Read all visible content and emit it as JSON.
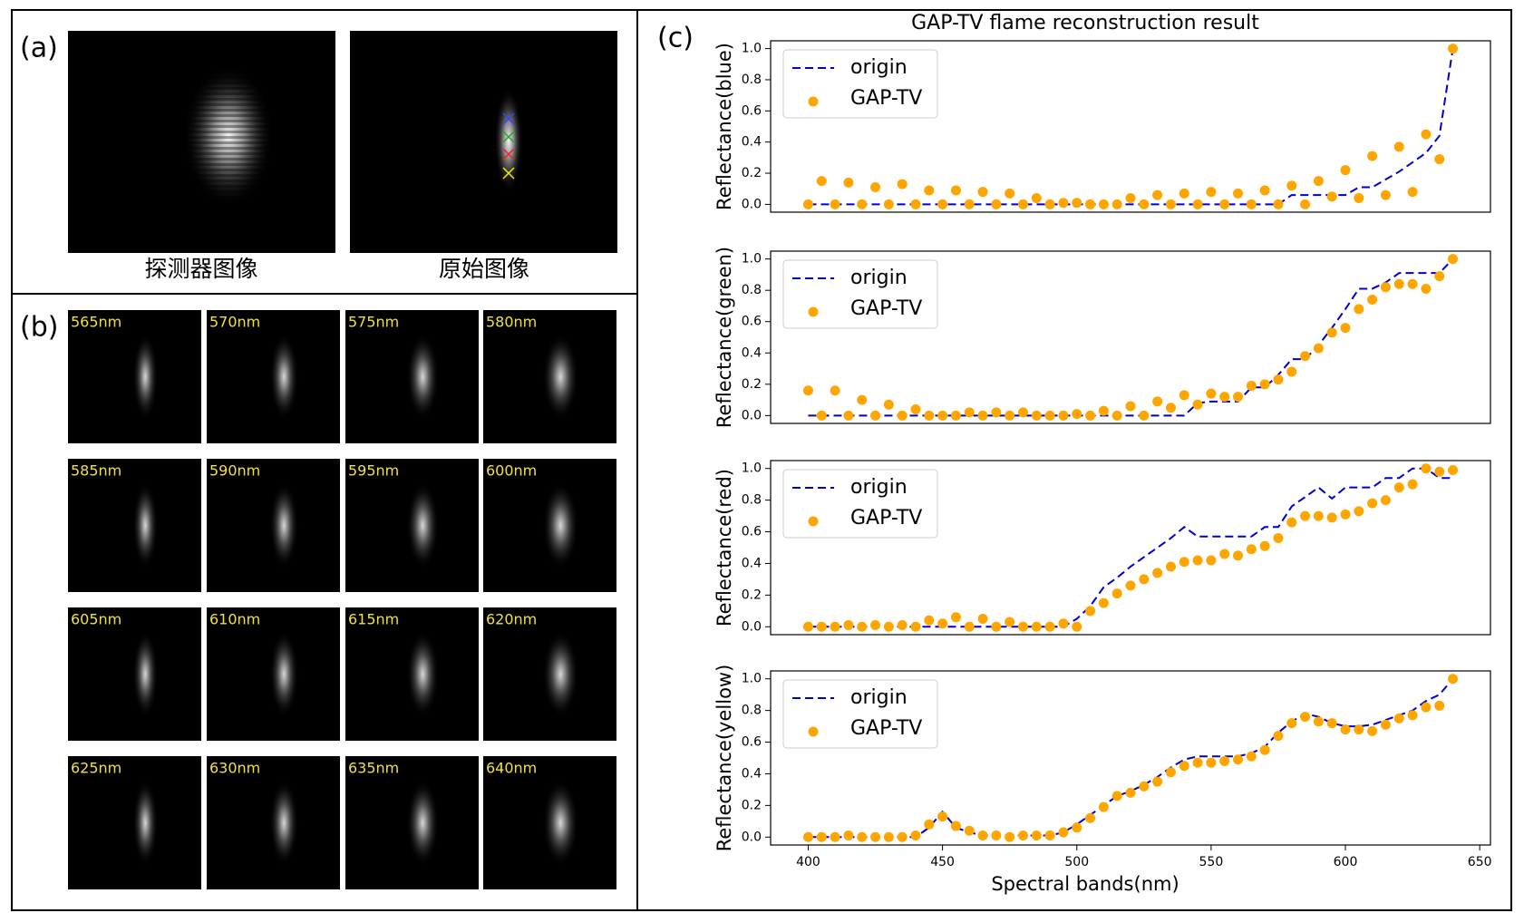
{
  "panel_labels": {
    "a": "(a)",
    "b": "(b)",
    "c": "(c)"
  },
  "image_captions": [
    "探测器图像",
    "原始图像"
  ],
  "wavelengths": [
    "565nm",
    "570nm",
    "575nm",
    "580nm",
    "585nm",
    "590nm",
    "595nm",
    "600nm",
    "605nm",
    "610nm",
    "615nm",
    "620nm",
    "625nm",
    "630nm",
    "635nm",
    "640nm"
  ],
  "chart_data": [
    {
      "type": "line",
      "title": "GAP-TV flame reconstruction result",
      "ylabel": "Reflectance(blue)",
      "x": [
        400,
        405,
        410,
        415,
        420,
        425,
        430,
        435,
        440,
        445,
        450,
        455,
        460,
        465,
        470,
        475,
        480,
        485,
        490,
        495,
        500,
        505,
        510,
        515,
        520,
        525,
        530,
        535,
        540,
        545,
        550,
        555,
        560,
        565,
        570,
        575,
        580,
        585,
        590,
        595,
        600,
        605,
        610,
        615,
        620,
        625,
        630,
        635,
        640
      ],
      "xlim": [
        386,
        654
      ],
      "ylim": [
        -0.05,
        1.05
      ],
      "yticks": [
        {
          "value": 0,
          "label": "0.0"
        },
        0.2,
        0.4,
        0.6,
        0.8,
        {
          "value": 1,
          "label": "1.0"
        }
      ],
      "legend": "upper left",
      "series": [
        {
          "name": "origin",
          "color": "#0000cc",
          "linestyle": "dashed",
          "values": [
            0,
            0,
            0,
            0,
            0,
            0,
            0,
            0,
            0,
            0,
            0,
            0,
            0,
            0,
            0,
            0,
            0,
            0,
            0,
            0,
            0,
            0,
            0,
            0,
            0,
            0,
            0,
            0,
            0,
            0,
            0,
            0,
            0,
            0,
            0,
            0,
            0.06,
            0.06,
            0.06,
            0.06,
            0.06,
            0.11,
            0.11,
            0.16,
            0.21,
            0.27,
            0.33,
            0.44,
            1.0
          ]
        },
        {
          "name": "GAP-TV",
          "color": "#ffa500",
          "marker": "o",
          "linestyle": "none",
          "values": [
            0,
            0.15,
            0,
            0.14,
            0,
            0.11,
            0,
            0.13,
            0,
            0.09,
            0,
            0.09,
            0,
            0.08,
            0,
            0.07,
            0,
            0.04,
            0,
            0.01,
            0.01,
            0,
            0,
            0,
            0.04,
            0,
            0.06,
            0,
            0.07,
            0,
            0.08,
            0,
            0.07,
            0,
            0.09,
            0,
            0.12,
            0,
            0.15,
            0.05,
            0.22,
            0.04,
            0.31,
            0.06,
            0.37,
            0.08,
            0.45,
            0.29,
            1.0
          ]
        }
      ]
    },
    {
      "type": "line",
      "ylabel": "Reflectance(green)",
      "x": [
        400,
        405,
        410,
        415,
        420,
        425,
        430,
        435,
        440,
        445,
        450,
        455,
        460,
        465,
        470,
        475,
        480,
        485,
        490,
        495,
        500,
        505,
        510,
        515,
        520,
        525,
        530,
        535,
        540,
        545,
        550,
        555,
        560,
        565,
        570,
        575,
        580,
        585,
        590,
        595,
        600,
        605,
        610,
        615,
        620,
        625,
        630,
        635,
        640
      ],
      "xlim": [
        386,
        654
      ],
      "ylim": [
        -0.05,
        1.05
      ],
      "yticks": [
        {
          "value": 0,
          "label": "0.0"
        },
        0.2,
        0.4,
        0.6,
        0.8,
        {
          "value": 1,
          "label": "1.0"
        }
      ],
      "legend": "upper left",
      "series": [
        {
          "name": "origin",
          "color": "#0000cc",
          "linestyle": "dashed",
          "values": [
            0,
            0,
            0,
            0,
            0,
            0,
            0,
            0,
            0,
            0,
            0,
            0,
            0,
            0,
            0,
            0,
            0,
            0,
            0,
            0,
            0,
            0,
            0,
            0,
            0,
            0,
            0,
            0,
            0,
            0.08,
            0.09,
            0.09,
            0.09,
            0.18,
            0.18,
            0.26,
            0.36,
            0.36,
            0.45,
            0.56,
            0.68,
            0.81,
            0.81,
            0.85,
            0.91,
            0.91,
            0.91,
            0.91,
            1.0
          ]
        },
        {
          "name": "GAP-TV",
          "color": "#ffa500",
          "marker": "o",
          "linestyle": "none",
          "values": [
            0.16,
            0,
            0.16,
            0,
            0.1,
            0,
            0.07,
            0,
            0.04,
            0,
            0,
            0,
            0.02,
            0,
            0.02,
            0,
            0.02,
            0,
            0,
            0,
            0.01,
            0,
            0.03,
            0,
            0.06,
            0,
            0.09,
            0.05,
            0.13,
            0.07,
            0.14,
            0.12,
            0.12,
            0.19,
            0.2,
            0.23,
            0.28,
            0.38,
            0.43,
            0.53,
            0.56,
            0.68,
            0.74,
            0.82,
            0.84,
            0.84,
            0.81,
            0.89,
            1.0
          ]
        }
      ]
    },
    {
      "type": "line",
      "ylabel": "Reflectance(red)",
      "x": [
        400,
        405,
        410,
        415,
        420,
        425,
        430,
        435,
        440,
        445,
        450,
        455,
        460,
        465,
        470,
        475,
        480,
        485,
        490,
        495,
        500,
        505,
        510,
        515,
        520,
        525,
        530,
        535,
        540,
        545,
        550,
        555,
        560,
        565,
        570,
        575,
        580,
        585,
        590,
        595,
        600,
        605,
        610,
        615,
        620,
        625,
        630,
        635,
        640
      ],
      "xlim": [
        386,
        654
      ],
      "ylim": [
        -0.05,
        1.05
      ],
      "yticks": [
        {
          "value": 0,
          "label": "0.0"
        },
        0.2,
        0.4,
        0.6,
        0.8,
        {
          "value": 1,
          "label": "1.0"
        }
      ],
      "legend": "upper left",
      "series": [
        {
          "name": "origin",
          "color": "#0000cc",
          "linestyle": "dashed",
          "values": [
            0,
            0,
            0,
            0,
            0,
            0,
            0,
            0,
            0,
            0,
            0,
            0,
            0,
            0,
            0,
            0,
            0,
            0,
            0,
            0,
            0.05,
            0.13,
            0.25,
            0.31,
            0.38,
            0.44,
            0.5,
            0.56,
            0.63,
            0.57,
            0.57,
            0.57,
            0.57,
            0.57,
            0.63,
            0.63,
            0.76,
            0.82,
            0.88,
            0.81,
            0.88,
            0.88,
            0.88,
            0.94,
            0.94,
            1.0,
            1.0,
            0.94,
            0.94
          ]
        },
        {
          "name": "GAP-TV",
          "color": "#ffa500",
          "marker": "o",
          "linestyle": "none",
          "values": [
            0,
            0,
            0,
            0.01,
            0,
            0.01,
            0,
            0.01,
            0,
            0.04,
            0.02,
            0.06,
            0,
            0.05,
            0,
            0.03,
            0,
            0,
            0,
            0.02,
            0,
            0.1,
            0.15,
            0.21,
            0.26,
            0.3,
            0.34,
            0.38,
            0.41,
            0.42,
            0.42,
            0.46,
            0.45,
            0.49,
            0.51,
            0.56,
            0.66,
            0.7,
            0.7,
            0.69,
            0.71,
            0.73,
            0.78,
            0.8,
            0.88,
            0.9,
            1.0,
            0.98,
            0.99
          ]
        }
      ]
    },
    {
      "type": "line",
      "ylabel": "Reflectance(yellow)",
      "xlabel": "Spectral bands(nm)",
      "x": [
        400,
        405,
        410,
        415,
        420,
        425,
        430,
        435,
        440,
        445,
        450,
        455,
        460,
        465,
        470,
        475,
        480,
        485,
        490,
        495,
        500,
        505,
        510,
        515,
        520,
        525,
        530,
        535,
        540,
        545,
        550,
        555,
        560,
        565,
        570,
        575,
        580,
        585,
        590,
        595,
        600,
        605,
        610,
        615,
        620,
        625,
        630,
        635,
        640
      ],
      "xlim": [
        386,
        654
      ],
      "ylim": [
        -0.05,
        1.05
      ],
      "xticks": [
        400,
        450,
        500,
        550,
        600,
        650
      ],
      "yticks": [
        {
          "value": 0,
          "label": "0.0"
        },
        0.2,
        0.4,
        0.6,
        0.8,
        {
          "value": 1,
          "label": "1.0"
        }
      ],
      "legend": "upper left",
      "series": [
        {
          "name": "origin",
          "color": "#0000cc",
          "linestyle": "dashed",
          "values": [
            0,
            0,
            0,
            0,
            0,
            0,
            0,
            0,
            0,
            0.06,
            0.16,
            0.06,
            0.03,
            0.01,
            0.01,
            0.01,
            0.01,
            0.01,
            0.01,
            0.03,
            0.08,
            0.14,
            0.2,
            0.26,
            0.29,
            0.33,
            0.38,
            0.44,
            0.49,
            0.51,
            0.51,
            0.51,
            0.51,
            0.53,
            0.57,
            0.66,
            0.73,
            0.78,
            0.76,
            0.72,
            0.7,
            0.7,
            0.71,
            0.74,
            0.77,
            0.8,
            0.86,
            0.9,
            1.0
          ]
        },
        {
          "name": "GAP-TV",
          "color": "#ffa500",
          "marker": "o",
          "linestyle": "none",
          "values": [
            0,
            0,
            0,
            0.01,
            0,
            0,
            0,
            0,
            0.01,
            0.08,
            0.13,
            0.07,
            0.04,
            0.01,
            0.01,
            0,
            0.01,
            0.01,
            0.01,
            0.03,
            0.06,
            0.12,
            0.19,
            0.26,
            0.28,
            0.32,
            0.35,
            0.41,
            0.45,
            0.47,
            0.47,
            0.48,
            0.49,
            0.51,
            0.55,
            0.64,
            0.72,
            0.76,
            0.73,
            0.72,
            0.68,
            0.68,
            0.67,
            0.71,
            0.75,
            0.77,
            0.82,
            0.83,
            1.0
          ]
        }
      ]
    }
  ]
}
